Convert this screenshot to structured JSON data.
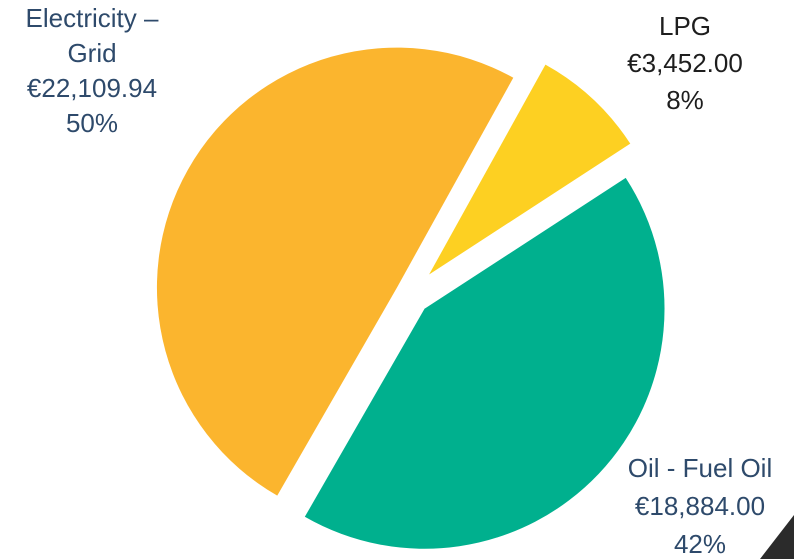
{
  "chart_data": {
    "type": "pie",
    "categories": [
      "LPG",
      "Oil - Fuel Oil",
      "Electricity – Grid"
    ],
    "values": [
      3452.0,
      18884.0,
      22109.94
    ],
    "value_labels": [
      "€3,452.00",
      "€18,884.00",
      "€22,109.94"
    ],
    "percentages": [
      8,
      42,
      50
    ],
    "percentage_labels": [
      "8%",
      "42%",
      "50%"
    ],
    "colors": [
      "#fdd022",
      "#00b08e",
      "#fbb52e"
    ],
    "label_colors": [
      "#1e1e1e",
      "#2e4a6b",
      "#2e4a6b"
    ]
  }
}
